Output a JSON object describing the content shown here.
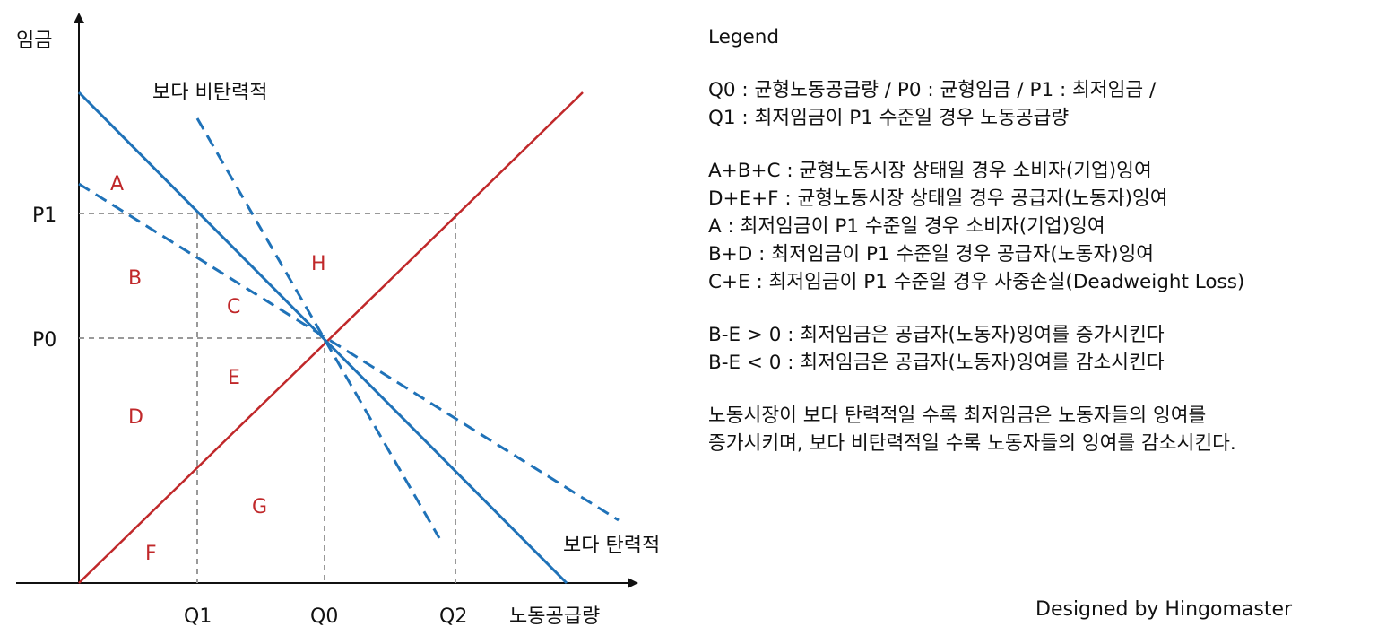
{
  "axes": {
    "y_label": "임금",
    "x_label": "노동공급량",
    "y_ticks": [
      "P1",
      "P0"
    ],
    "x_ticks": [
      "Q1",
      "Q0",
      "Q2"
    ]
  },
  "curve_labels": {
    "less_elastic": "보다 비탄력적",
    "more_elastic": "보다 탄력적"
  },
  "regions": [
    "A",
    "B",
    "C",
    "D",
    "E",
    "F",
    "G",
    "H"
  ],
  "colors": {
    "demand": "#1f72b8",
    "supply": "#c0282a",
    "guide": "#999999",
    "region_text": "#c0282a"
  },
  "legend": {
    "title": "Legend",
    "group1": [
      "Q0 : 균형노동공급량 / P0 : 균형임금 / P1 : 최저임금 /",
      "Q1 : 최저임금이 P1 수준일 경우 노동공급량"
    ],
    "group2": [
      "A+B+C : 균형노동시장 상태일 경우 소비자(기업)잉여",
      "D+E+F : 균형노동시장 상태일 경우 공급자(노동자)잉여",
      "A : 최저임금이 P1 수준일 경우 소비자(기업)잉여",
      "B+D : 최저임금이 P1 수준일 경우 공급자(노동자)잉여",
      "C+E : 최저임금이 P1 수준일 경우 사중손실(Deadweight Loss)"
    ],
    "group3": [
      "B-E > 0 : 최저임금은 공급자(노동자)잉여를 증가시킨다",
      "B-E < 0 : 최저임금은 공급자(노동자)잉여를 감소시킨다"
    ],
    "group4": [
      "노동시장이 보다 탄력적일 수록 최저임금은 노동자들의 잉여를",
      "증가시키며, 보다 비탄력적일 수록 노동자들의 잉여를 감소시킨다."
    ]
  },
  "credit": "Designed by Hingomaster"
}
